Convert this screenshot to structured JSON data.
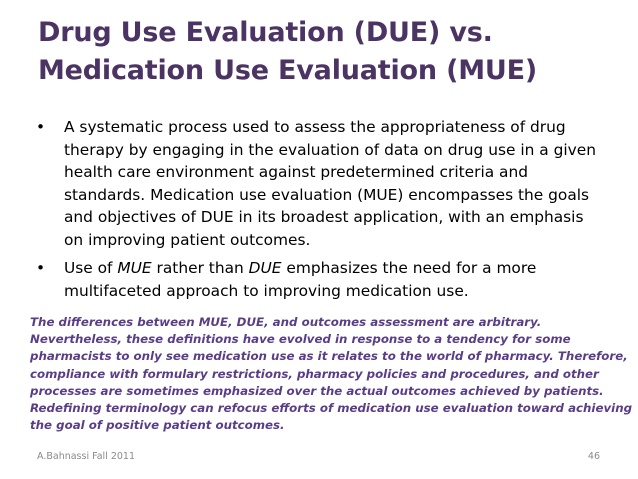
{
  "title": {
    "line1": "Drug Use Evaluation (DUE) vs.",
    "line2": "Medication Use Evaluation (MUE)"
  },
  "bullets": [
    {
      "marker": "•",
      "lines": [
        "A systematic process used to assess the appropriateness of drug",
        "therapy by engaging in the evaluation of data on drug use in a given",
        "health care environment against predetermined criteria and",
        "standards. Medication use evaluation (MUE) encompasses the goals",
        "and objectives of DUE in its broadest application, with an emphasis",
        "on improving patient outcomes."
      ]
    },
    {
      "marker": "•",
      "pre": "Use of ",
      "em1": "MUE",
      "mid": " rather than ",
      "em2": "DUE",
      "post": " emphasizes the need for a more",
      "line2": "multifaceted approach to improving medication use."
    }
  ],
  "note": {
    "lines": [
      "The differences between MUE, DUE, and outcomes assessment are arbitrary.",
      "Nevertheless, these definitions have evolved in response to a tendency for some",
      "pharmacists to only see medication use as it relates to the world of pharmacy. Therefore,",
      "compliance with formulary restrictions, pharmacy policies and procedures, and other",
      "processes are sometimes emphasized over the actual outcomes achieved by patients.",
      "Redefining terminology can refocus efforts of medication use evaluation toward achieving",
      "the goal of positive patient outcomes."
    ]
  },
  "footer": {
    "left": "A.Bahnassi Fall 2011",
    "page_number": "46"
  }
}
